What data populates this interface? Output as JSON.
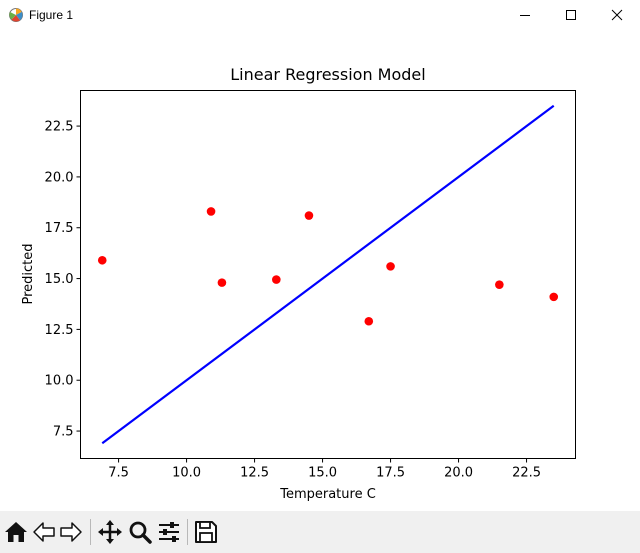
{
  "window": {
    "title": "Figure 1",
    "icons": [
      "matplotlib-icon",
      "minimize-icon",
      "maximize-icon",
      "close-icon"
    ]
  },
  "toolbar": {
    "buttons": [
      "home-icon",
      "back-icon",
      "forward-icon",
      "pan-icon",
      "zoom-icon",
      "configure-subplots-icon",
      "save-icon"
    ]
  },
  "chart_data": {
    "type": "scatter",
    "title": "Linear Regression Model",
    "xlabel": "Temperature C",
    "ylabel": "Predicted",
    "xlim": [
      6.1,
      24.3
    ],
    "ylim": [
      6.15,
      24.25
    ],
    "xticks": [
      "7.5",
      "10.0",
      "12.5",
      "15.0",
      "17.5",
      "20.0",
      "22.5"
    ],
    "xtick_values": [
      7.5,
      10.0,
      12.5,
      15.0,
      17.5,
      20.0,
      22.5
    ],
    "yticks": [
      "7.5",
      "10.0",
      "12.5",
      "15.0",
      "17.5",
      "20.0",
      "22.5"
    ],
    "ytick_values": [
      7.5,
      10.0,
      12.5,
      15.0,
      17.5,
      20.0,
      22.5
    ],
    "grid": false,
    "series": [
      {
        "kind": "scatter",
        "color": "#ff0000",
        "points": [
          [
            6.9,
            15.9
          ],
          [
            10.9,
            18.3
          ],
          [
            11.3,
            14.8
          ],
          [
            13.3,
            14.95
          ],
          [
            14.5,
            18.1
          ],
          [
            16.7,
            12.9
          ],
          [
            17.5,
            15.6
          ],
          [
            21.5,
            14.7
          ],
          [
            23.5,
            14.1
          ]
        ]
      },
      {
        "kind": "line",
        "color": "#0000ff",
        "points": [
          [
            6.9,
            6.9
          ],
          [
            23.5,
            23.5
          ]
        ]
      }
    ]
  }
}
